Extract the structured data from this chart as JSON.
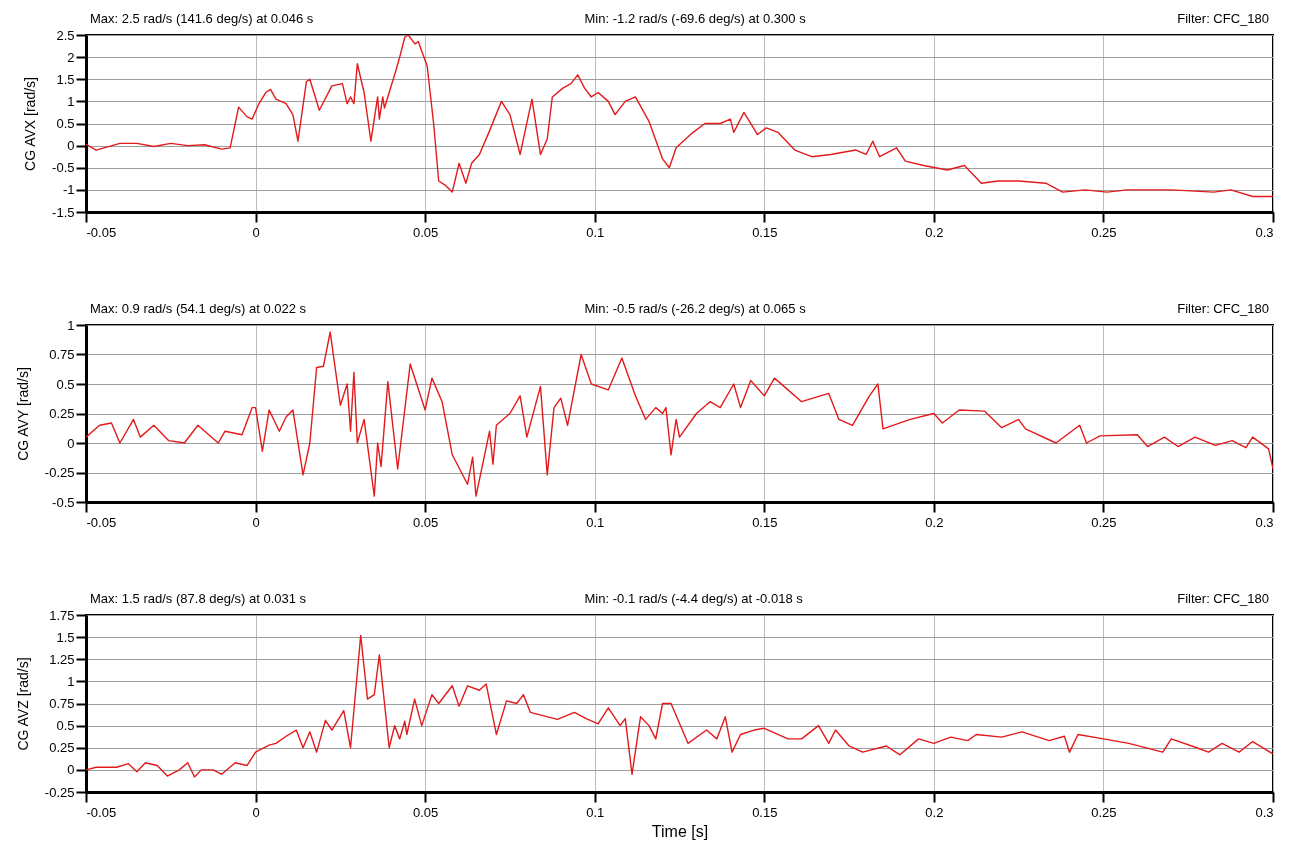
{
  "chart_data": [
    {
      "type": "line",
      "ylabel": "CG AVX [rad/s]",
      "annotations": [
        "Max:  2.5 rad/s (141.6 deg/s) at 0.046 s",
        "Min:  -1.2 rad/s (-69.6 deg/s) at 0.300 s",
        "Filter: CFC_180"
      ],
      "xlim": [
        -0.05,
        0.3
      ],
      "xticks": [
        -0.05,
        0,
        0.05,
        0.1,
        0.15,
        0.2,
        0.25,
        0.3
      ],
      "ylim": [
        -1.5,
        2.5
      ],
      "yticks": [
        -1.5,
        -1,
        -0.5,
        0,
        0.5,
        1,
        1.5,
        2,
        2.5
      ],
      "grid": true,
      "series": [
        {
          "color": "#e31a1c",
          "x": [
            -0.05,
            -0.047,
            -0.04,
            -0.035,
            -0.03,
            -0.025,
            -0.02,
            -0.015,
            -0.01,
            -0.0075,
            -0.005,
            -0.0025,
            -0.001,
            0.001,
            0.003,
            0.0044,
            0.006,
            0.009,
            0.011,
            0.0125,
            0.015,
            0.016,
            0.0188,
            0.0225,
            0.0256,
            0.027,
            0.028,
            0.029,
            0.03,
            0.032,
            0.034,
            0.036,
            0.0365,
            0.0375,
            0.038,
            0.041,
            0.0425,
            0.044,
            0.045,
            0.047,
            0.048,
            0.0506,
            0.0525,
            0.054,
            0.056,
            0.058,
            0.06,
            0.062,
            0.0637,
            0.066,
            0.0688,
            0.0725,
            0.075,
            0.078,
            0.0815,
            0.084,
            0.086,
            0.0875,
            0.0906,
            0.093,
            0.095,
            0.097,
            0.099,
            0.101,
            0.104,
            0.106,
            0.109,
            0.112,
            0.116,
            0.12,
            0.122,
            0.124,
            0.129,
            0.1325,
            0.137,
            0.14,
            0.141,
            0.144,
            0.148,
            0.1506,
            0.154,
            0.159,
            0.164,
            0.1696,
            0.177,
            0.18,
            0.182,
            0.184,
            0.189,
            0.1916,
            0.197,
            0.204,
            0.209,
            0.214,
            0.219,
            0.225,
            0.233,
            0.238,
            0.2446,
            0.251,
            0.257,
            0.27,
            0.2825,
            0.2876,
            0.294,
            0.3
          ],
          "values": [
            0.03,
            -0.1,
            0.05,
            0.05,
            -0.02,
            0.05,
            0,
            0.02,
            -0.08,
            -0.05,
            0.87,
            0.65,
            0.6,
            0.95,
            1.2,
            1.27,
            1.05,
            0.95,
            0.7,
            0.1,
            1.45,
            1.5,
            0.8,
            1.35,
            1.4,
            0.95,
            1.1,
            0.95,
            1.85,
            1.2,
            0.1,
            1.1,
            0.6,
            1.1,
            0.85,
            1.6,
            2,
            2.45,
            2.5,
            2.3,
            2.35,
            1.8,
            0.5,
            -0.8,
            -0.9,
            -1.05,
            -0.4,
            -0.85,
            -0.4,
            -0.2,
            0.3,
            1,
            0.7,
            -0.2,
            1.05,
            -0.2,
            0.15,
            1.1,
            1.3,
            1.4,
            1.6,
            1.3,
            1.1,
            1.2,
            1,
            0.7,
            1,
            1.1,
            0.55,
            -0.3,
            -0.5,
            -0.05,
            0.3,
            0.5,
            0.5,
            0.6,
            0.3,
            0.75,
            0.25,
            0.4,
            0.3,
            -0.1,
            -0.25,
            -0.2,
            -0.1,
            -0.2,
            0.1,
            -0.25,
            -0.05,
            -0.35,
            -0.45,
            -0.55,
            -0.45,
            -0.85,
            -0.8,
            -0.8,
            -0.85,
            -1.05,
            -1,
            -1.05,
            -1,
            -1,
            -1.05,
            -1,
            -1.15,
            -1.15
          ]
        }
      ]
    },
    {
      "type": "line",
      "ylabel": "CG AVY [rad/s]",
      "annotations": [
        "Max:  0.9 rad/s (54.1 deg/s) at 0.022 s",
        "Min:  -0.5 rad/s (-26.2 deg/s) at 0.065 s",
        "Filter: CFC_180"
      ],
      "xlim": [
        -0.05,
        0.3
      ],
      "xticks": [
        -0.05,
        0,
        0.05,
        0.1,
        0.15,
        0.2,
        0.25,
        0.3
      ],
      "ylim": [
        -0.5,
        1
      ],
      "yticks": [
        -0.5,
        -0.25,
        0,
        0.25,
        0.5,
        0.75,
        1
      ],
      "grid": true,
      "series": [
        {
          "color": "#e31a1c",
          "x": [
            -0.05,
            -0.046,
            -0.0425,
            -0.04,
            -0.036,
            -0.034,
            -0.03,
            -0.0256,
            -0.021,
            -0.017,
            -0.011,
            -0.009,
            -0.004,
            -0.001,
            0,
            0.002,
            0.004,
            0.007,
            0.009,
            0.011,
            0.014,
            0.016,
            0.018,
            0.02,
            0.022,
            0.025,
            0.027,
            0.028,
            0.029,
            0.03,
            0.032,
            0.035,
            0.036,
            0.037,
            0.039,
            0.0419,
            0.0456,
            0.0475,
            0.05,
            0.052,
            0.055,
            0.058,
            0.0625,
            0.064,
            0.065,
            0.069,
            0.07,
            0.071,
            0.075,
            0.078,
            0.08,
            0.084,
            0.086,
            0.088,
            0.09,
            0.092,
            0.096,
            0.099,
            0.104,
            0.108,
            0.112,
            0.115,
            0.118,
            0.12,
            0.121,
            0.1225,
            0.124,
            0.125,
            0.13,
            0.134,
            0.137,
            0.141,
            0.143,
            0.146,
            0.15,
            0.153,
            0.157,
            0.161,
            0.169,
            0.172,
            0.176,
            0.181,
            0.1835,
            0.185,
            0.193,
            0.2,
            0.2025,
            0.2075,
            0.215,
            0.22,
            0.225,
            0.227,
            0.236,
            0.243,
            0.245,
            0.249,
            0.26,
            0.263,
            0.268,
            0.272,
            0.277,
            0.283,
            0.288,
            0.292,
            0.294,
            0.2987,
            0.3
          ],
          "values": [
            0.05,
            0.15,
            0.17,
            0,
            0.2,
            0.05,
            0.15,
            0.02,
            0,
            0.15,
            0,
            0.1,
            0.07,
            0.3,
            0.3,
            -0.07,
            0.28,
            0.1,
            0.22,
            0.28,
            -0.27,
            0,
            0.64,
            0.65,
            0.94,
            0.32,
            0.5,
            0.1,
            0.6,
            0,
            0.2,
            -0.45,
            0,
            -0.2,
            0.52,
            -0.22,
            0.67,
            0.5,
            0.28,
            0.55,
            0.35,
            -0.1,
            -0.35,
            -0.12,
            -0.45,
            0.1,
            -0.18,
            0.15,
            0.25,
            0.4,
            0.05,
            0.48,
            -0.27,
            0.3,
            0.38,
            0.15,
            0.75,
            0.5,
            0.45,
            0.72,
            0.4,
            0.2,
            0.3,
            0.25,
            0.3,
            -0.1,
            0.2,
            0.05,
            0.25,
            0.35,
            0.3,
            0.5,
            0.3,
            0.53,
            0.4,
            0.55,
            0.45,
            0.35,
            0.42,
            0.2,
            0.15,
            0.4,
            0.5,
            0.12,
            0.2,
            0.25,
            0.17,
            0.28,
            0.27,
            0.13,
            0.2,
            0.12,
            0,
            0.15,
            0,
            0.06,
            0.07,
            -0.03,
            0.05,
            -0.03,
            0.05,
            -0.02,
            0.02,
            -0.04,
            0.05,
            -0.05,
            -0.22
          ]
        }
      ]
    },
    {
      "type": "line",
      "xlabel": "Time [s]",
      "ylabel": "CG AVZ [rad/s]",
      "annotations": [
        "Max:  1.5 rad/s (87.8 deg/s) at 0.031 s",
        "Min:  -0.1 rad/s (-4.4 deg/s) at -0.018 s",
        "Filter: CFC_180"
      ],
      "xlim": [
        -0.05,
        0.3
      ],
      "xticks": [
        -0.05,
        0,
        0.05,
        0.1,
        0.15,
        0.2,
        0.25,
        0.3
      ],
      "ylim": [
        -0.25,
        1.75
      ],
      "yticks": [
        -0.25,
        0,
        0.25,
        0.5,
        0.75,
        1,
        1.25,
        1.5,
        1.75
      ],
      "grid": true,
      "series": [
        {
          "color": "#e31a1c",
          "x": [
            -0.05,
            -0.047,
            -0.041,
            -0.0375,
            -0.035,
            -0.0325,
            -0.029,
            -0.026,
            -0.0225,
            -0.02,
            -0.018,
            -0.016,
            -0.0125,
            -0.01,
            -0.006,
            -0.0025,
            0,
            0.004,
            0.006,
            0.009,
            0.012,
            0.014,
            0.016,
            0.018,
            0.0206,
            0.0225,
            0.026,
            0.028,
            0.031,
            0.033,
            0.035,
            0.0365,
            0.0394,
            0.041,
            0.0425,
            0.044,
            0.0446,
            0.0469,
            0.049,
            0.052,
            0.054,
            0.058,
            0.06,
            0.0625,
            0.066,
            0.068,
            0.071,
            0.074,
            0.077,
            0.079,
            0.081,
            0.089,
            0.094,
            0.0975,
            0.101,
            0.104,
            0.1075,
            0.109,
            0.111,
            0.1135,
            0.116,
            0.118,
            0.12,
            0.1225,
            0.1275,
            0.133,
            0.136,
            0.1385,
            0.1405,
            0.143,
            0.147,
            0.15,
            0.157,
            0.161,
            0.166,
            0.169,
            0.171,
            0.175,
            0.179,
            0.186,
            0.19,
            0.1955,
            0.2,
            0.205,
            0.21,
            0.2125,
            0.22,
            0.226,
            0.234,
            0.2385,
            0.24,
            0.2425,
            0.25,
            0.2575,
            0.2675,
            0.27,
            0.2775,
            0.281,
            0.285,
            0.29,
            0.294,
            0.3
          ],
          "values": [
            0,
            0.03,
            0.03,
            0.07,
            -0.02,
            0.08,
            0.05,
            -0.07,
            0,
            0.08,
            -0.08,
            0,
            0,
            -0.05,
            0.08,
            0.05,
            0.2,
            0.28,
            0.3,
            0.38,
            0.45,
            0.25,
            0.43,
            0.2,
            0.56,
            0.45,
            0.67,
            0.25,
            1.52,
            0.8,
            0.85,
            1.3,
            0.25,
            0.5,
            0.35,
            0.55,
            0.4,
            0.8,
            0.5,
            0.85,
            0.75,
            0.95,
            0.72,
            0.95,
            0.9,
            0.97,
            0.4,
            0.78,
            0.75,
            0.85,
            0.65,
            0.57,
            0.65,
            0.58,
            0.52,
            0.7,
            0.5,
            0.58,
            -0.05,
            0.6,
            0.5,
            0.35,
            0.75,
            0.75,
            0.3,
            0.45,
            0.35,
            0.6,
            0.2,
            0.4,
            0.45,
            0.47,
            0.35,
            0.35,
            0.5,
            0.3,
            0.45,
            0.27,
            0.2,
            0.27,
            0.17,
            0.35,
            0.3,
            0.37,
            0.33,
            0.4,
            0.37,
            0.43,
            0.33,
            0.38,
            0.2,
            0.4,
            0.35,
            0.3,
            0.2,
            0.35,
            0.25,
            0.2,
            0.3,
            0.2,
            0.32,
            0.18
          ]
        }
      ]
    }
  ]
}
